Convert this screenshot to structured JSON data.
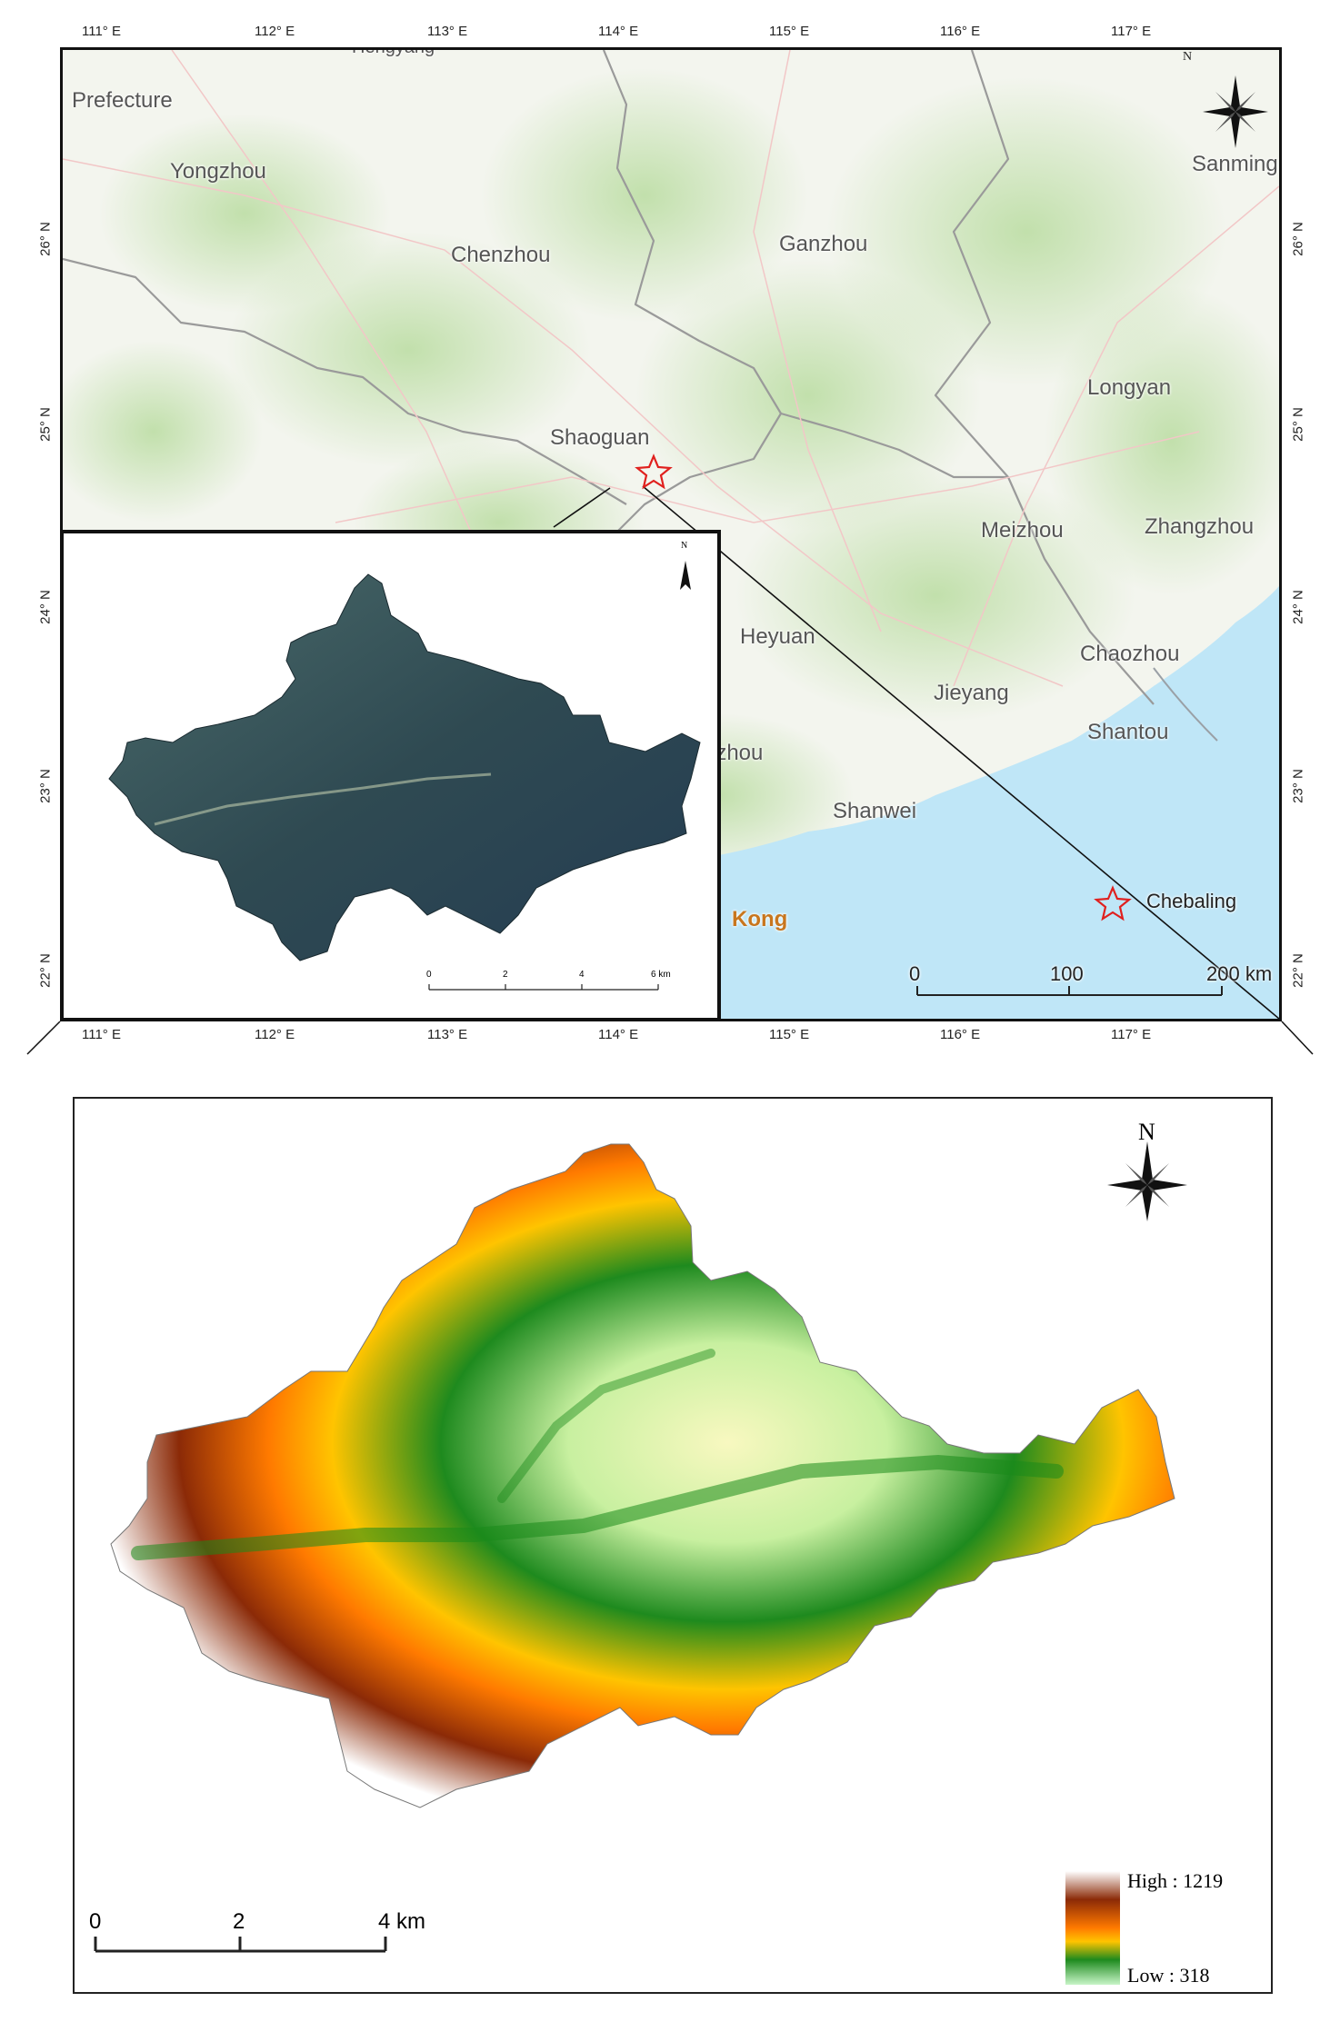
{
  "top_map": {
    "lon_ticks": [
      "111° E",
      "112° E",
      "113° E",
      "114° E",
      "115° E",
      "116° E",
      "117° E"
    ],
    "lat_ticks": [
      "26° N",
      "25° N",
      "24° N",
      "23° N",
      "22° N"
    ],
    "places": {
      "prefecture": "Prefecture",
      "fragment": "Hengyang",
      "yongzhou": "Yongzhou",
      "chenzhou": "Chenzhou",
      "ganzhou": "Ganzhou",
      "sanming": "Sanming",
      "longyan": "Longyan",
      "shaoguan": "Shaoguan",
      "meizhou": "Meizhou",
      "zhangzhou": "Zhangzhou",
      "heyuan": "Heyuan",
      "chaozhou": "Chaozhou",
      "jieyang": "Jieyang",
      "shantou": "Shantou",
      "huizhou_partial": "izhou",
      "shanwei": "Shanwei",
      "kong": "Kong",
      "chebaling": "Chebaling"
    },
    "scale_bar": {
      "labels": [
        "0",
        "100",
        "200 km"
      ]
    },
    "north": "N",
    "colors": {
      "sea": "#bfe6f7",
      "land": "#f4f6ef",
      "vegetation": "#bfe0a8",
      "star": "#e0201e"
    }
  },
  "inset_map": {
    "north": "N",
    "scale_bar": {
      "labels": [
        "0",
        "2",
        "4",
        "6 km"
      ]
    }
  },
  "dem_map": {
    "north": "N",
    "scale_bar": {
      "labels": [
        "0",
        "2",
        "4 km"
      ]
    },
    "legend": {
      "high_label": "High : 1219",
      "low_label": "Low : 318",
      "high_value": 1219,
      "low_value": 318,
      "colors": [
        "#ffffff",
        "#8b2a07",
        "#ff7a00",
        "#ffc400",
        "#1e8a1e",
        "#c8f5c8"
      ]
    }
  }
}
